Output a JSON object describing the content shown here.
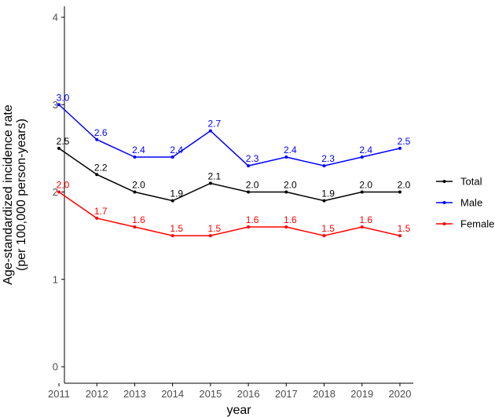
{
  "chart_data": {
    "type": "line",
    "x": [
      2011,
      2012,
      2013,
      2014,
      2015,
      2016,
      2017,
      2018,
      2019,
      2020
    ],
    "xlabel": "year",
    "ylabel_line1": "Age-standardized incidence rate",
    "ylabel_line2": "(per 100,000 person-years)",
    "ylim": [
      0,
      4
    ],
    "yticks": [
      0,
      1,
      2,
      3,
      4
    ],
    "grid": false,
    "legend_position": "right",
    "series": [
      {
        "name": "Total",
        "color": "#000000",
        "values": [
          2.5,
          2.2,
          2.0,
          1.9,
          2.1,
          2.0,
          2.0,
          1.9,
          2.0,
          2.0
        ],
        "labels": [
          "2.5",
          "2.2",
          "2.0",
          "1.9",
          "2.1",
          "2.0",
          "2.0",
          "1.9",
          "2.0",
          "2.0"
        ]
      },
      {
        "name": "Male",
        "color": "#0000ff",
        "values": [
          3.0,
          2.6,
          2.4,
          2.4,
          2.7,
          2.3,
          2.4,
          2.3,
          2.4,
          2.5
        ],
        "labels": [
          "3.0",
          "2.6",
          "2.4",
          "2.4",
          "2.7",
          "2.3",
          "2.4",
          "2.3",
          "2.4",
          "2.5"
        ]
      },
      {
        "name": "Female",
        "color": "#ff0000",
        "values": [
          2.0,
          1.7,
          1.6,
          1.5,
          1.5,
          1.6,
          1.6,
          1.5,
          1.6,
          1.5
        ],
        "labels": [
          "2.0",
          "1.7",
          "1.6",
          "1.5",
          "1.5",
          "1.6",
          "1.6",
          "1.5",
          "1.6",
          "1.5"
        ]
      }
    ]
  }
}
